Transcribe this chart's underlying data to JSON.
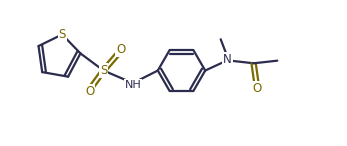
{
  "bg_color": "#ffffff",
  "line_color": "#2c2c4e",
  "s_color": "#7a6a00",
  "o_color": "#7a6a00",
  "n_color": "#2c2c4e",
  "line_width": 1.6,
  "fig_width": 3.47,
  "fig_height": 1.46,
  "dpi": 100,
  "xlim": [
    0,
    10.5
  ],
  "ylim": [
    0,
    4.3
  ]
}
